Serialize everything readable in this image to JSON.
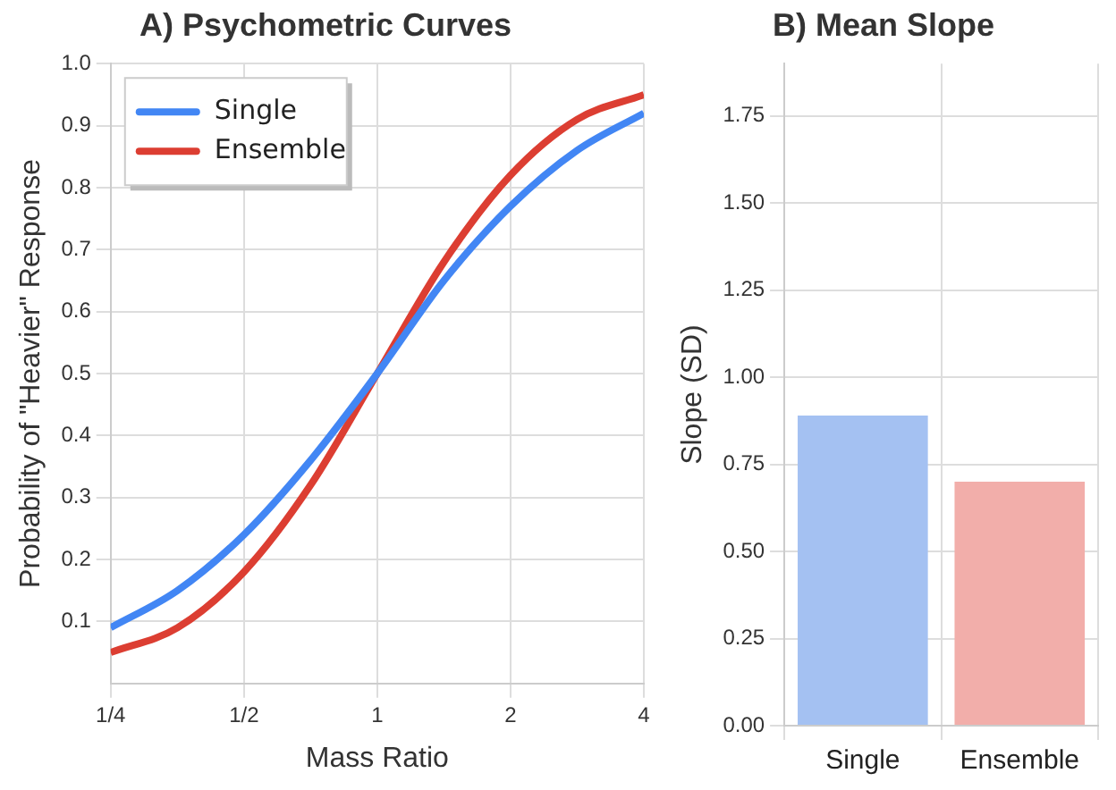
{
  "chart_data": [
    {
      "type": "line",
      "title": "A) Psychometric Curves",
      "xlabel": "Mass Ratio",
      "ylabel": "Probability of \"Heavier\" Response",
      "log": "x",
      "x": [
        0.25,
        0.354,
        0.5,
        0.707,
        1,
        1.414,
        2,
        2.828,
        4
      ],
      "series": [
        {
          "name": "Single",
          "color": "#4286f4",
          "values": [
            0.09,
            0.15,
            0.24,
            0.36,
            0.5,
            0.65,
            0.77,
            0.86,
            0.92
          ]
        },
        {
          "name": "Ensemble",
          "color": "#dc3e32",
          "values": [
            0.05,
            0.09,
            0.18,
            0.32,
            0.5,
            0.68,
            0.82,
            0.91,
            0.95
          ]
        }
      ],
      "xlim": [
        0.25,
        4
      ],
      "xticks": [
        {
          "value": 0.25,
          "label": "1/4"
        },
        {
          "value": 0.5,
          "label": "1/2"
        },
        1,
        2,
        4
      ],
      "ylim": [
        0,
        1
      ],
      "yticks": [
        0.1,
        0.2,
        0.3,
        0.4,
        0.5,
        0.6,
        0.7,
        0.8,
        0.9,
        {
          "value": 1,
          "label": "1.0"
        }
      ],
      "grid": true,
      "legend": "top left",
      "marker": "none",
      "line_style": "solid"
    },
    {
      "type": "bar",
      "title": "B) Mean Slope",
      "ylabel": "Slope (SD)",
      "categories": [
        "Single",
        "Ensemble"
      ],
      "values": [
        0.89,
        0.7
      ],
      "colors": [
        "#a4c1f2",
        "#f2aeaa"
      ],
      "ylim": [
        0,
        1.9
      ],
      "yticks": [
        {
          "value": 0,
          "label": "0.00"
        },
        0.25,
        {
          "value": 0.5,
          "label": "0.50"
        },
        0.75,
        {
          "value": 1,
          "label": "1.00"
        },
        1.25,
        {
          "value": 1.5,
          "label": "1.50"
        },
        1.75
      ],
      "grid": true,
      "legend": false
    }
  ]
}
